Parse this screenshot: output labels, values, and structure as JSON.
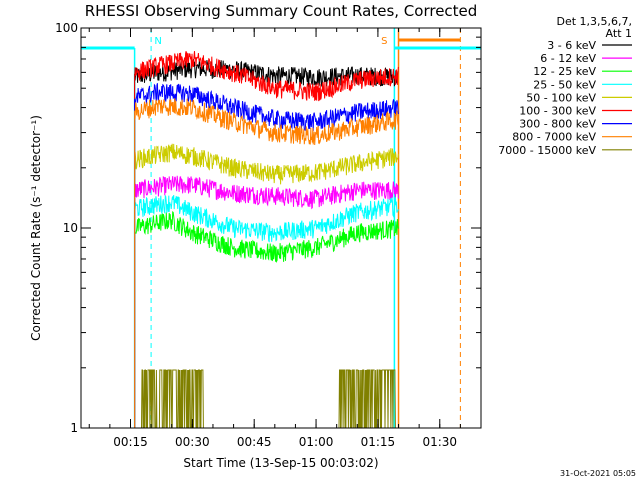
{
  "chart_data": {
    "type": "line",
    "title": "RHESSI Observing Summary Count Rates, Corrected",
    "xlabel": "Start Time (13-Sep-15 00:03:02)",
    "ylabel": "Corrected Count Rate (s⁻¹ detector⁻¹)",
    "yscale": "log",
    "xlim": [
      "00:03",
      "01:40"
    ],
    "ylim": [
      1,
      100
    ],
    "x_ticks": [
      "00:15",
      "00:30",
      "00:45",
      "01:00",
      "01:15",
      "01:30"
    ],
    "y_ticks": [
      "1",
      "10",
      "100"
    ],
    "legend_header": [
      "Det 1,3,5,6,7,",
      "Att 1"
    ],
    "legend_placement": "right",
    "timestamp": "31-Oct-2021 05:05",
    "annotations": [
      {
        "text": "N",
        "at": "00:20",
        "color": "#00ffff"
      },
      {
        "text": "S",
        "at": "01:18",
        "color": "#ff8000"
      }
    ],
    "markers": {
      "night_start": "00:20",
      "night_end": "01:19",
      "saa_start": "01:20",
      "saa_end": "01:35"
    },
    "series": [
      {
        "name": "3 - 6 keV",
        "color": "#000000",
        "start": "00:16",
        "end": "01:20",
        "points": [
          [
            "00:16",
            57
          ],
          [
            "00:22",
            60
          ],
          [
            "00:30",
            63
          ],
          [
            "00:40",
            62
          ],
          [
            "00:50",
            58
          ],
          [
            "01:00",
            57
          ],
          [
            "01:10",
            58
          ],
          [
            "01:20",
            57
          ]
        ]
      },
      {
        "name": "6 - 12 keV",
        "color": "#ff00ff",
        "start": "00:16",
        "end": "01:20",
        "points": [
          [
            "00:16",
            15.5
          ],
          [
            "00:25",
            16.5
          ],
          [
            "00:30",
            16.5
          ],
          [
            "00:40",
            15
          ],
          [
            "00:50",
            14.5
          ],
          [
            "01:00",
            14
          ],
          [
            "01:10",
            15.5
          ],
          [
            "01:20",
            15.5
          ]
        ]
      },
      {
        "name": "12 - 25 keV",
        "color": "#00ff00",
        "start": "00:16",
        "end": "01:20",
        "points": [
          [
            "00:16",
            10
          ],
          [
            "00:25",
            11
          ],
          [
            "00:30",
            9.5
          ],
          [
            "00:40",
            8
          ],
          [
            "00:50",
            7.5
          ],
          [
            "01:00",
            8
          ],
          [
            "01:10",
            9.5
          ],
          [
            "01:20",
            10
          ]
        ]
      },
      {
        "name": "25 - 50 keV",
        "color": "#00ffff",
        "start": "00:16",
        "end": "01:20",
        "points": [
          [
            "00:16",
            12.5
          ],
          [
            "00:25",
            13.5
          ],
          [
            "00:30",
            12
          ],
          [
            "00:40",
            10
          ],
          [
            "00:50",
            9.5
          ],
          [
            "01:00",
            10
          ],
          [
            "01:10",
            12
          ],
          [
            "01:20",
            13
          ]
        ]
      },
      {
        "name": "50 - 100 keV",
        "color": "#cccc00",
        "start": "00:16",
        "end": "01:20",
        "points": [
          [
            "00:16",
            22
          ],
          [
            "00:25",
            24
          ],
          [
            "00:30",
            23
          ],
          [
            "00:40",
            20
          ],
          [
            "00:50",
            18.5
          ],
          [
            "01:00",
            19
          ],
          [
            "01:10",
            21
          ],
          [
            "01:20",
            23
          ]
        ]
      },
      {
        "name": "100 - 300 keV",
        "color": "#ff0000",
        "start": "00:16",
        "end": "01:20",
        "points": [
          [
            "00:16",
            60
          ],
          [
            "00:22",
            65
          ],
          [
            "00:30",
            70
          ],
          [
            "00:40",
            60
          ],
          [
            "00:50",
            50
          ],
          [
            "01:00",
            48
          ],
          [
            "01:10",
            55
          ],
          [
            "01:20",
            58
          ]
        ]
      },
      {
        "name": "300 - 800 keV",
        "color": "#0000ff",
        "start": "00:16",
        "end": "01:20",
        "points": [
          [
            "00:16",
            45
          ],
          [
            "00:22",
            48
          ],
          [
            "00:30",
            47
          ],
          [
            "00:40",
            40
          ],
          [
            "00:50",
            35
          ],
          [
            "01:00",
            34
          ],
          [
            "01:10",
            38
          ],
          [
            "01:20",
            40
          ]
        ]
      },
      {
        "name": "800 - 7000 keV",
        "color": "#ff8000",
        "start": "00:16",
        "end": "01:20",
        "points": [
          [
            "00:16",
            38
          ],
          [
            "00:22",
            41
          ],
          [
            "00:30",
            40
          ],
          [
            "00:40",
            34
          ],
          [
            "00:50",
            30
          ],
          [
            "01:00",
            29
          ],
          [
            "01:10",
            32
          ],
          [
            "01:20",
            35
          ]
        ]
      },
      {
        "name": "7000 - 15000 keV",
        "color": "#808000",
        "start": "00:16",
        "end": "01:20",
        "points": [
          [
            "00:16",
            1
          ],
          [
            "00:20",
            1.95
          ],
          [
            "00:30",
            1.95
          ],
          [
            "00:35",
            1
          ],
          [
            "01:04",
            1
          ],
          [
            "01:08",
            1.95
          ],
          [
            "01:18",
            1.95
          ],
          [
            "01:20",
            1
          ]
        ]
      }
    ]
  }
}
